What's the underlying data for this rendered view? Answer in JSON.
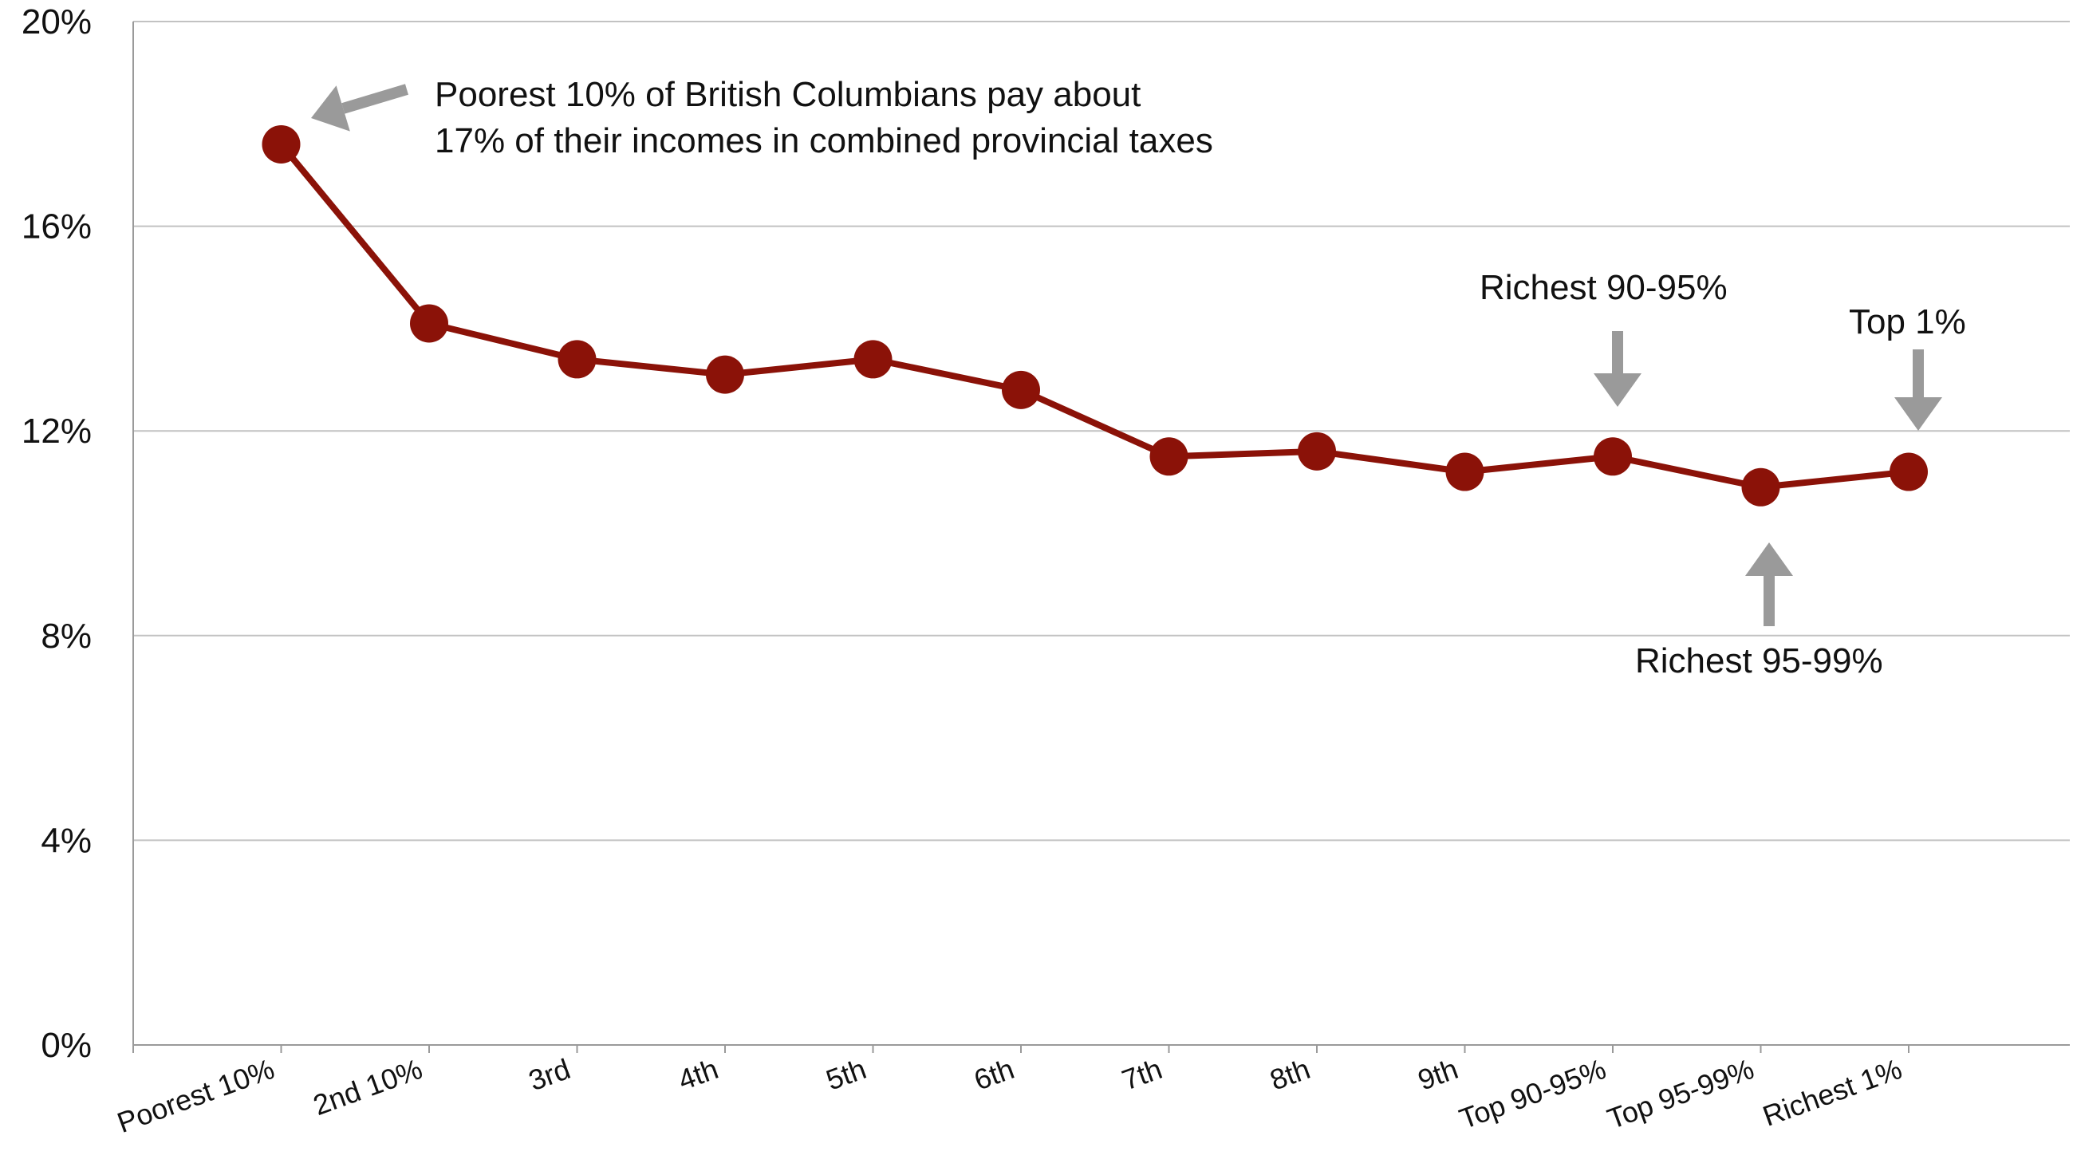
{
  "chart_data": {
    "type": "line",
    "title": "",
    "xlabel": "",
    "ylabel": "",
    "ylim": [
      0,
      20
    ],
    "yticks": [
      "0%",
      "4%",
      "8%",
      "12%",
      "16%",
      "20%"
    ],
    "ytick_values": [
      0,
      4,
      8,
      12,
      16,
      20
    ],
    "grid": true,
    "legend": "none",
    "categories": [
      "Poorest 10%",
      "2nd 10%",
      "3rd",
      "4th",
      "5th",
      "6th",
      "7th",
      "8th",
      "9th",
      "Top 90-95%",
      "Top 95-99%",
      "Richest 1%"
    ],
    "series": [
      {
        "values": [
          17.6,
          14.1,
          13.4,
          13.1,
          13.4,
          12.8,
          11.5,
          11.6,
          11.2,
          11.5,
          10.9,
          11.2
        ]
      }
    ],
    "annotations": [
      {
        "id": "poorest",
        "lines": [
          "Poorest 10% of British Columbians pay about",
          "17% of their incomes in combined provincial taxes"
        ],
        "target_index": 0
      },
      {
        "id": "richest-90-95",
        "lines": [
          "Richest 90-95%"
        ],
        "target_index": 9
      },
      {
        "id": "top-1",
        "lines": [
          "Top 1%"
        ],
        "target_index": 11
      },
      {
        "id": "richest-95-99",
        "lines": [
          "Richest 95-99%"
        ],
        "target_index": 10
      }
    ]
  },
  "colors": {
    "series": "#8B1208",
    "grid": "#c2c2c2",
    "axis": "#9a9a9a",
    "arrow": "#9a9a9a",
    "text": "#111111"
  }
}
